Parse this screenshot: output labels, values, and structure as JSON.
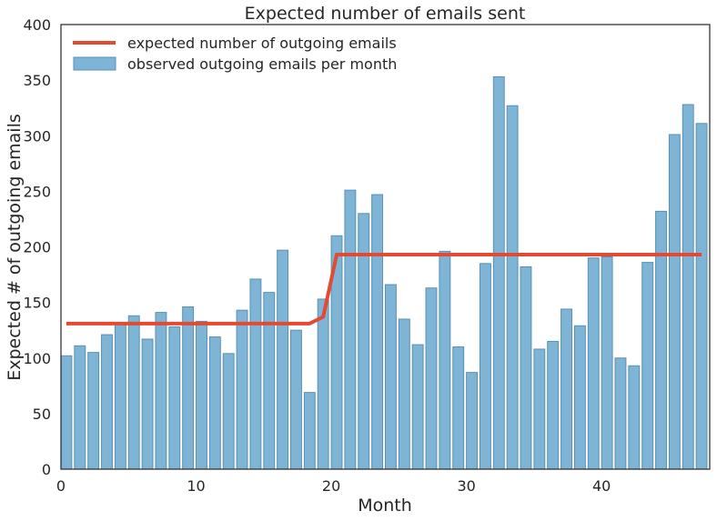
{
  "chart_data": {
    "type": "bar",
    "title": "Expected number of emails sent",
    "xlabel": "Month",
    "ylabel": "Expected # of outgoing emails",
    "xlim": [
      0,
      48
    ],
    "ylim": [
      0,
      400
    ],
    "xticks": [
      "0",
      "10",
      "20",
      "30",
      "40"
    ],
    "yticks": [
      "0",
      "50",
      "100",
      "150",
      "200",
      "250",
      "300",
      "350",
      "400"
    ],
    "grid": false,
    "legend_position": "top-left",
    "colors": {
      "bars": "#7eb5d7",
      "bar_edge": "#5a8fb0",
      "line": "#e24a33",
      "axes": "#262626"
    },
    "series": [
      {
        "name": "observed outgoing emails per month",
        "kind": "bar",
        "x": [
          0,
          1,
          2,
          3,
          4,
          5,
          6,
          7,
          8,
          9,
          10,
          11,
          12,
          13,
          14,
          15,
          16,
          17,
          18,
          19,
          20,
          21,
          22,
          23,
          24,
          25,
          26,
          27,
          28,
          29,
          30,
          31,
          32,
          33,
          34,
          35,
          36,
          37,
          38,
          39,
          40,
          41,
          42,
          43,
          44,
          45,
          46,
          47
        ],
        "values": [
          102,
          111,
          105,
          121,
          130,
          138,
          117,
          141,
          128,
          146,
          133,
          119,
          104,
          143,
          171,
          159,
          197,
          125,
          69,
          153,
          210,
          251,
          230,
          247,
          166,
          135,
          112,
          163,
          196,
          110,
          87,
          185,
          353,
          327,
          182,
          108,
          115,
          144,
          129,
          190,
          191,
          100,
          93,
          186,
          232,
          301,
          328,
          311
        ]
      },
      {
        "name": "expected number of outgoing emails",
        "kind": "line",
        "x": [
          0,
          18,
          19,
          20,
          47
        ],
        "values": [
          131,
          131,
          137,
          193,
          193
        ]
      }
    ]
  }
}
